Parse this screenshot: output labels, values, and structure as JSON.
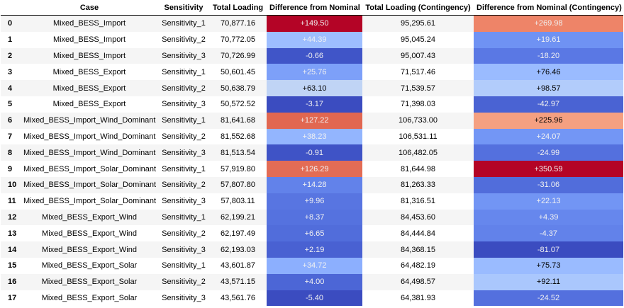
{
  "columns": [
    "",
    "Case",
    "Sensitivity",
    "Total Loading",
    "Difference from Nominal",
    "Total Loading (Contingency)",
    "Difference from Nominal (Contingency)"
  ],
  "rows": [
    {
      "idx": "0",
      "case": "Mixed_BESS_Import",
      "sens": "Sensitivity_1",
      "total": "70,877.16",
      "diff": "+149.50",
      "cont": "95,295.61",
      "diffc": "+269.98",
      "diff_bg": "#b40426",
      "diff_fg": "#f1f1f1",
      "diffc_bg": "#ee8468",
      "diffc_fg": "#f1f1f1"
    },
    {
      "idx": "1",
      "case": "Mixed_BESS_Import",
      "sens": "Sensitivity_2",
      "total": "70,772.05",
      "diff": "+44.39",
      "cont": "95,045.24",
      "diffc": "+19.61",
      "diff_bg": "#9ebeff",
      "diff_fg": "#f1f1f1",
      "diffc_bg": "#6f92f3",
      "diffc_fg": "#f1f1f1"
    },
    {
      "idx": "2",
      "case": "Mixed_BESS_Import",
      "sens": "Sensitivity_3",
      "total": "70,726.99",
      "diff": "-0.66",
      "cont": "95,007.43",
      "diffc": "-18.20",
      "diff_bg": "#4055c8",
      "diff_fg": "#f1f1f1",
      "diffc_bg": "#5a78e4",
      "diffc_fg": "#f1f1f1"
    },
    {
      "idx": "3",
      "case": "Mixed_BESS_Export",
      "sens": "Sensitivity_1",
      "total": "50,601.45",
      "diff": "+25.76",
      "cont": "71,517.46",
      "diffc": "+76.46",
      "diff_bg": "#7da0f9",
      "diff_fg": "#f1f1f1",
      "diffc_bg": "#9abbff",
      "diffc_fg": "#000000"
    },
    {
      "idx": "4",
      "case": "Mixed_BESS_Export",
      "sens": "Sensitivity_2",
      "total": "50,638.79",
      "diff": "+63.10",
      "cont": "71,539.57",
      "diffc": "+98.57",
      "diff_bg": "#c0d4f5",
      "diff_fg": "#000000",
      "diffc_bg": "#b2ccfb",
      "diffc_fg": "#000000"
    },
    {
      "idx": "5",
      "case": "Mixed_BESS_Export",
      "sens": "Sensitivity_3",
      "total": "50,572.52",
      "diff": "-3.17",
      "cont": "71,398.03",
      "diffc": "-42.97",
      "diff_bg": "#3b4cc0",
      "diff_fg": "#f1f1f1",
      "diffc_bg": "#4a63d3",
      "diffc_fg": "#f1f1f1"
    },
    {
      "idx": "6",
      "case": "Mixed_BESS_Import_Wind_Dominant",
      "sens": "Sensitivity_1",
      "total": "81,641.68",
      "diff": "+127.22",
      "cont": "106,733.00",
      "diffc": "+225.96",
      "diff_bg": "#e16751",
      "diff_fg": "#f1f1f1",
      "diffc_bg": "#f5a081",
      "diffc_fg": "#000000"
    },
    {
      "idx": "7",
      "case": "Mixed_BESS_Import_Wind_Dominant",
      "sens": "Sensitivity_2",
      "total": "81,552.68",
      "diff": "+38.23",
      "cont": "106,531.11",
      "diffc": "+24.07",
      "diff_bg": "#93b5fe",
      "diff_fg": "#f1f1f1",
      "diffc_bg": "#7396f5",
      "diffc_fg": "#f1f1f1"
    },
    {
      "idx": "8",
      "case": "Mixed_BESS_Import_Wind_Dominant",
      "sens": "Sensitivity_3",
      "total": "81,513.54",
      "diff": "-0.91",
      "cont": "106,482.05",
      "diffc": "-24.99",
      "diff_bg": "#3f53c6",
      "diff_fg": "#f1f1f1",
      "diffc_bg": "#5470de",
      "diffc_fg": "#f1f1f1"
    },
    {
      "idx": "9",
      "case": "Mixed_BESS_Import_Solar_Dominant",
      "sens": "Sensitivity_1",
      "total": "57,919.80",
      "diff": "+126.29",
      "cont": "81,644.98",
      "diffc": "+350.59",
      "diff_bg": "#e36c55",
      "diff_fg": "#f1f1f1",
      "diffc_bg": "#b40426",
      "diffc_fg": "#f1f1f1"
    },
    {
      "idx": "10",
      "case": "Mixed_BESS_Import_Solar_Dominant",
      "sens": "Sensitivity_2",
      "total": "57,807.80",
      "diff": "+14.28",
      "cont": "81,263.33",
      "diffc": "-31.06",
      "diff_bg": "#6282ea",
      "diff_fg": "#f1f1f1",
      "diffc_bg": "#516ddb",
      "diffc_fg": "#f1f1f1"
    },
    {
      "idx": "11",
      "case": "Mixed_BESS_Import_Solar_Dominant",
      "sens": "Sensitivity_3",
      "total": "57,803.11",
      "diff": "+9.96",
      "cont": "81,316.51",
      "diffc": "+22.13",
      "diff_bg": "#5875e1",
      "diff_fg": "#f1f1f1",
      "diffc_bg": "#7295f4",
      "diffc_fg": "#f1f1f1"
    },
    {
      "idx": "12",
      "case": "Mixed_BESS_Export_Wind",
      "sens": "Sensitivity_1",
      "total": "62,199.21",
      "diff": "+8.37",
      "cont": "84,453.60",
      "diffc": "+4.39",
      "diff_bg": "#5572df",
      "diff_fg": "#f1f1f1",
      "diffc_bg": "#6687ed",
      "diffc_fg": "#f1f1f1"
    },
    {
      "idx": "13",
      "case": "Mixed_BESS_Export_Wind",
      "sens": "Sensitivity_2",
      "total": "62,197.49",
      "diff": "+6.65",
      "cont": "84,444.84",
      "diffc": "-4.37",
      "diff_bg": "#516ddb",
      "diff_fg": "#f1f1f1",
      "diffc_bg": "#6282ea",
      "diffc_fg": "#f1f1f1"
    },
    {
      "idx": "14",
      "case": "Mixed_BESS_Export_Wind",
      "sens": "Sensitivity_3",
      "total": "62,193.03",
      "diff": "+2.19",
      "cont": "84,368.15",
      "diffc": "-81.07",
      "diff_bg": "#4961d2",
      "diff_fg": "#f1f1f1",
      "diffc_bg": "#3b4cc0",
      "diffc_fg": "#f1f1f1"
    },
    {
      "idx": "15",
      "case": "Mixed_BESS_Export_Solar",
      "sens": "Sensitivity_1",
      "total": "43,601.87",
      "diff": "+34.72",
      "cont": "64,482.19",
      "diffc": "+75.73",
      "diff_bg": "#8caffe",
      "diff_fg": "#f1f1f1",
      "diffc_bg": "#9abbff",
      "diffc_fg": "#000000"
    },
    {
      "idx": "16",
      "case": "Mixed_BESS_Export_Solar",
      "sens": "Sensitivity_2",
      "total": "43,571.15",
      "diff": "+4.00",
      "cont": "64,498.57",
      "diffc": "+92.11",
      "diff_bg": "#4c66d6",
      "diff_fg": "#f1f1f1",
      "diffc_bg": "#aac7fd",
      "diffc_fg": "#000000"
    },
    {
      "idx": "17",
      "case": "Mixed_BESS_Export_Solar",
      "sens": "Sensitivity_3",
      "total": "43,561.76",
      "diff": "-5.40",
      "cont": "64,381.93",
      "diffc": "-24.52",
      "diff_bg": "#3b4cc0",
      "diff_fg": "#f1f1f1",
      "diffc_bg": "#5470de",
      "diffc_fg": "#f1f1f1"
    }
  ]
}
